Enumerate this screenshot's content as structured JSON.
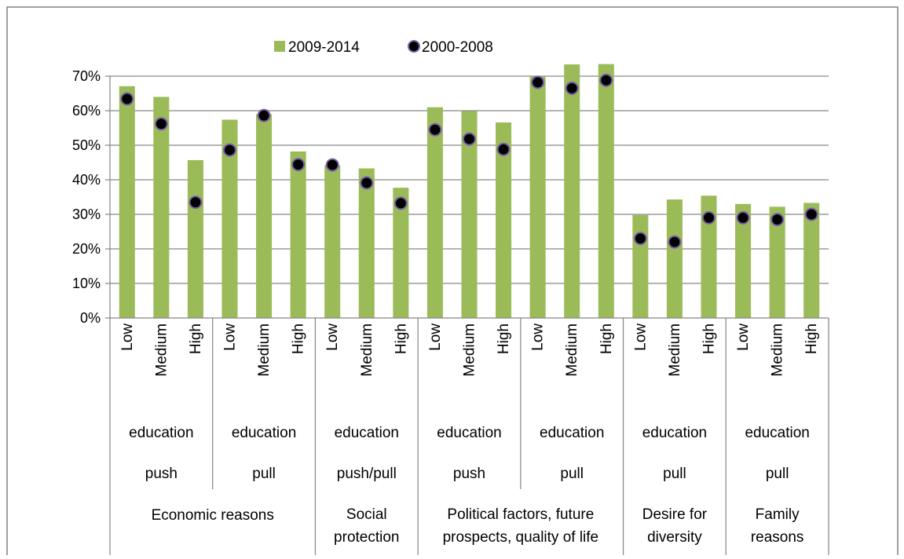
{
  "chart_data": {
    "type": "bar",
    "title": "",
    "xlabel": "",
    "ylabel": "",
    "ylim": [
      0,
      0.7
    ],
    "yticks": [
      "0%",
      "10%",
      "20%",
      "30%",
      "40%",
      "50%",
      "60%",
      "70%"
    ],
    "grid": true,
    "legend": "top-left",
    "categories": [
      "Low",
      "Medium",
      "High",
      "Low",
      "Medium",
      "High",
      "Low",
      "Medium",
      "High",
      "Low",
      "Medium",
      "High",
      "Low",
      "Medium",
      "High",
      "Low",
      "Medium",
      "High",
      "Low",
      "Medium",
      "High"
    ],
    "category_level_2": [
      "education",
      "education",
      "education",
      "education",
      "education",
      "education",
      "education"
    ],
    "category_level_3": [
      "push",
      "pull",
      "push/pull",
      "push",
      "pull",
      "pull",
      "pull"
    ],
    "category_level_4": [
      {
        "label": [
          "Economic reasons"
        ],
        "span": 2
      },
      {
        "label": [
          "Social",
          "protection"
        ],
        "span": 1
      },
      {
        "label": [
          "Political factors, future",
          "prospects, quality of life"
        ],
        "span": 2
      },
      {
        "label": [
          "Desire for",
          "diversity"
        ],
        "span": 1
      },
      {
        "label": [
          "Family",
          "reasons"
        ],
        "span": 1
      }
    ],
    "series": [
      {
        "name": "2009-2014",
        "kind": "bar",
        "color": "#9BBB59",
        "values": [
          0.671,
          0.64,
          0.457,
          0.574,
          0.59,
          0.482,
          0.442,
          0.433,
          0.377,
          0.61,
          0.599,
          0.566,
          0.7,
          0.734,
          0.735,
          0.298,
          0.343,
          0.354,
          0.33,
          0.322,
          0.333
        ]
      },
      {
        "name": "2000-2008",
        "kind": "marker",
        "color": "#000000",
        "edge_color": "#7A5FA8",
        "values": [
          0.634,
          0.562,
          0.335,
          0.486,
          0.586,
          0.444,
          0.443,
          0.391,
          0.332,
          0.545,
          0.518,
          0.488,
          0.682,
          0.665,
          0.688,
          0.23,
          0.22,
          0.29,
          0.29,
          0.285,
          0.3
        ]
      }
    ]
  }
}
